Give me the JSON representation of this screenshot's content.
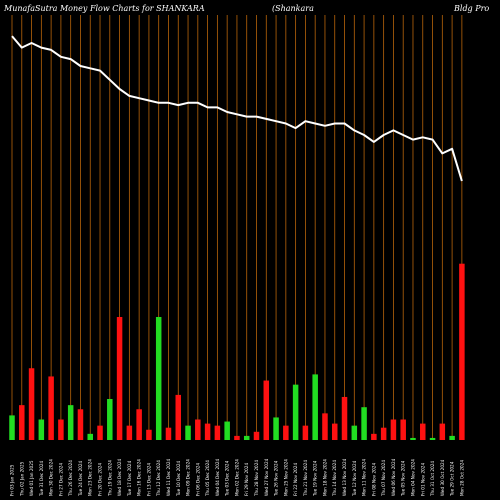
{
  "header": {
    "title": "MunafaSutra  Money Flow  Charts for SHANKARA",
    "company": "(Shankara",
    "company_rest": "Bldg Pro"
  },
  "colors": {
    "background": "#000000",
    "grid": "#b8640a",
    "price_line": "#ffffff",
    "up_bar": "#22dd22",
    "down_bar": "#ff1111",
    "title": "#ffffff"
  },
  "chart_data": {
    "type": "bar",
    "grid": true,
    "y_range": [
      0,
      1
    ],
    "categories": [
      "Fri 03 Jan 2025",
      "Thu 02 Jan 2025",
      "Wed 01 Jan 2025",
      "Tue 31 Dec 2024",
      "Mon 30 Dec 2024",
      "Fri 27 Dec 2024",
      "Thu 26 Dec 2024",
      "Tue 24 Dec 2024",
      "Mon 23 Dec 2024",
      "Fri 20 Dec 2024",
      "Thu 19 Dec 2024",
      "Wed 18 Dec 2024",
      "Tue 17 Dec 2024",
      "Mon 16 Dec 2024",
      "Fri 13 Dec 2024",
      "Thu 12 Dec 2024",
      "Wed 11 Dec 2024",
      "Tue 10 Dec 2024",
      "Mon 09 Dec 2024",
      "Fri 06 Dec 2024",
      "Thu 05 Dec 2024",
      "Wed 04 Dec 2024",
      "Tue 03 Dec 2024",
      "Mon 02 Dec 2024",
      "Fri 29 Nov 2024",
      "Thu 28 Nov 2024",
      "Wed 27 Nov 2024",
      "Tue 26 Nov 2024",
      "Mon 25 Nov 2024",
      "Fri 22 Nov 2024",
      "Thu 21 Nov 2024",
      "Tue 19 Nov 2024",
      "Mon 18 Nov 2024",
      "Thu 14 Nov 2024",
      "Wed 13 Nov 2024",
      "Tue 12 Nov 2024",
      "Mon 11 Nov 2024",
      "Fri 08 Nov 2024",
      "Thu 07 Nov 2024",
      "Wed 06 Nov 2024",
      "Tue 05 Nov 2024",
      "Mon 04 Nov 2024",
      "Fri 01 Nov 2024",
      "Thu 31 Oct 2024",
      "Wed 30 Oct 2024",
      "Tue 29 Oct 2024",
      "Mon 28 Oct 2024"
    ],
    "series": [
      {
        "type": "bar",
        "direction": [
          "up",
          "down",
          "down",
          "up",
          "down",
          "down",
          "up",
          "down",
          "up",
          "down",
          "up",
          "down",
          "down",
          "down",
          "down",
          "up",
          "down",
          "down",
          "up",
          "down",
          "down",
          "down",
          "up",
          "down",
          "up",
          "down",
          "down",
          "up",
          "down",
          "up",
          "down",
          "up",
          "down",
          "down",
          "down",
          "up",
          "up",
          "down",
          "down",
          "down",
          "down",
          "up",
          "down",
          "up",
          "down",
          "up",
          "down"
        ],
        "values": [
          0.12,
          0.17,
          0.35,
          0.1,
          0.31,
          0.1,
          0.17,
          0.15,
          0.03,
          0.07,
          0.2,
          0.6,
          0.07,
          0.15,
          0.05,
          0.6,
          0.06,
          0.22,
          0.07,
          0.1,
          0.08,
          0.07,
          0.09,
          0.02,
          0.02,
          0.04,
          0.29,
          0.11,
          0.07,
          0.27,
          0.07,
          0.32,
          0.13,
          0.08,
          0.21,
          0.07,
          0.16,
          0.03,
          0.06,
          0.1,
          0.1,
          0.01,
          0.08,
          0.01,
          0.08,
          0.02,
          0.86
        ]
      },
      {
        "type": "line",
        "values": [
          0.93,
          0.88,
          0.9,
          0.88,
          0.87,
          0.84,
          0.83,
          0.8,
          0.79,
          0.78,
          0.74,
          0.7,
          0.67,
          0.66,
          0.65,
          0.64,
          0.64,
          0.63,
          0.64,
          0.64,
          0.62,
          0.62,
          0.6,
          0.59,
          0.58,
          0.58,
          0.57,
          0.56,
          0.55,
          0.53,
          0.56,
          0.55,
          0.54,
          0.55,
          0.55,
          0.52,
          0.5,
          0.47,
          0.5,
          0.52,
          0.5,
          0.48,
          0.49,
          0.48,
          0.42,
          0.44,
          0.3
        ]
      }
    ]
  }
}
